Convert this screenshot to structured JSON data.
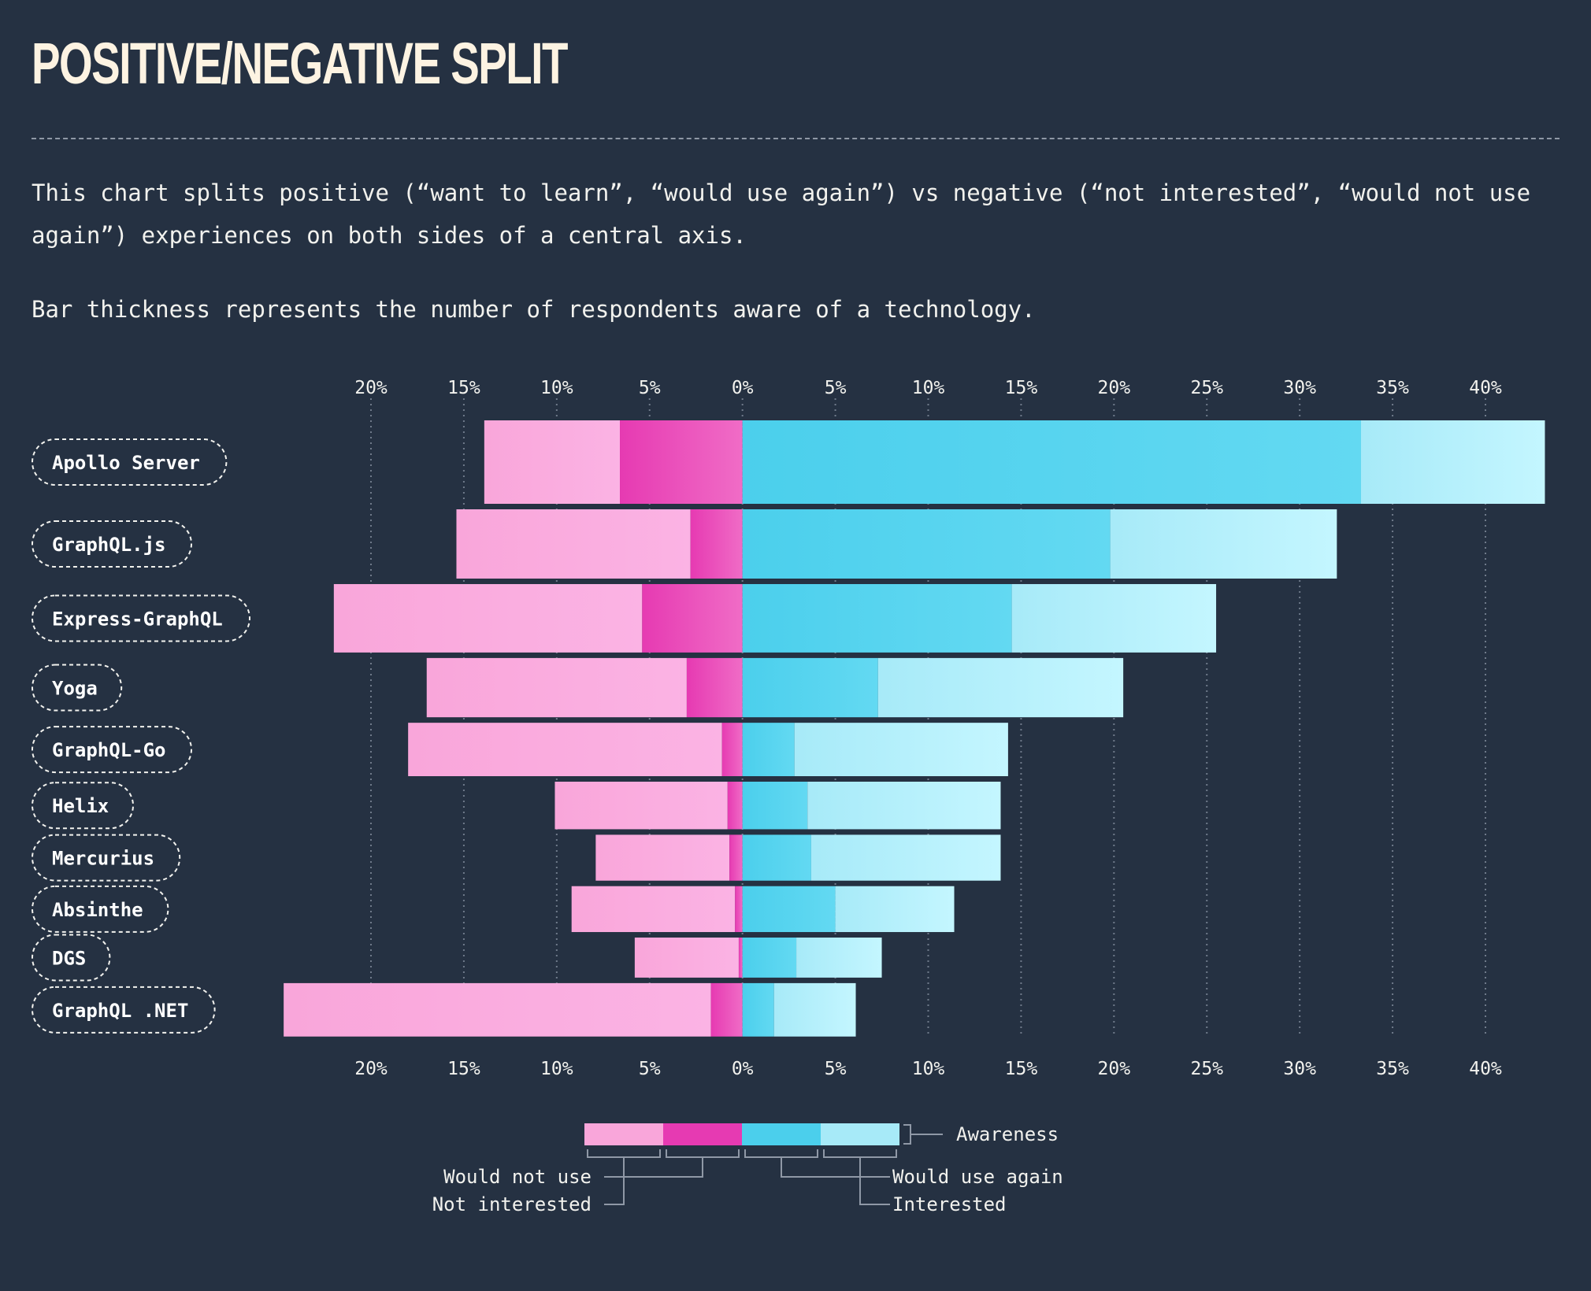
{
  "header": {
    "title": "POSITIVE/NEGATIVE SPLIT",
    "description_1": "This chart splits positive (“want to learn”, “would use again”) vs negative (“not interested”, “would not use again”) experiences on both sides of a central axis.",
    "description_2": "Bar thickness represents the number of respondents aware of a technology."
  },
  "colors": {
    "background": "#253142",
    "not_interested": "#f9a6da",
    "would_not_use": "#e63ab2",
    "would_use_again": "#4bcfec",
    "interested": "#a7eaf8"
  },
  "chart_data": {
    "type": "bar",
    "orientation": "horizontal-diverging",
    "x_tick_labels": [
      "20%",
      "15%",
      "10%",
      "5%",
      "0%",
      "5%",
      "10%",
      "15%",
      "20%",
      "25%",
      "30%",
      "35%",
      "40%"
    ],
    "xlim": [
      -20,
      40
    ],
    "grid": true,
    "categories": [
      "Apollo Server",
      "GraphQL.js",
      "Express-GraphQL",
      "Yoga",
      "GraphQL-Go",
      "Helix",
      "Mercurius",
      "Absinthe",
      "DGS",
      "GraphQL .NET"
    ],
    "awareness_relative": [
      1.0,
      0.83,
      0.82,
      0.71,
      0.64,
      0.57,
      0.55,
      0.55,
      0.48,
      0.64
    ],
    "series": [
      {
        "name": "Not interested",
        "values": [
          7.3,
          12.6,
          16.6,
          14.0,
          16.9,
          9.3,
          7.2,
          8.8,
          5.6,
          23.0
        ]
      },
      {
        "name": "Would not use",
        "values": [
          6.6,
          2.8,
          5.4,
          3.0,
          1.1,
          0.8,
          0.7,
          0.4,
          0.2,
          1.7
        ]
      },
      {
        "name": "Would use again",
        "values": [
          33.3,
          19.8,
          14.5,
          7.3,
          2.8,
          3.5,
          3.7,
          5.0,
          2.9,
          1.7
        ]
      },
      {
        "name": "Interested",
        "values": [
          9.9,
          12.2,
          11.0,
          13.2,
          11.5,
          10.4,
          10.2,
          6.4,
          4.6,
          4.4
        ]
      }
    ]
  },
  "legend": {
    "awareness": "Awareness",
    "would_not_use": "Would not use",
    "not_interested": "Not interested",
    "would_use_again": "Would use again",
    "interested": "Interested"
  }
}
